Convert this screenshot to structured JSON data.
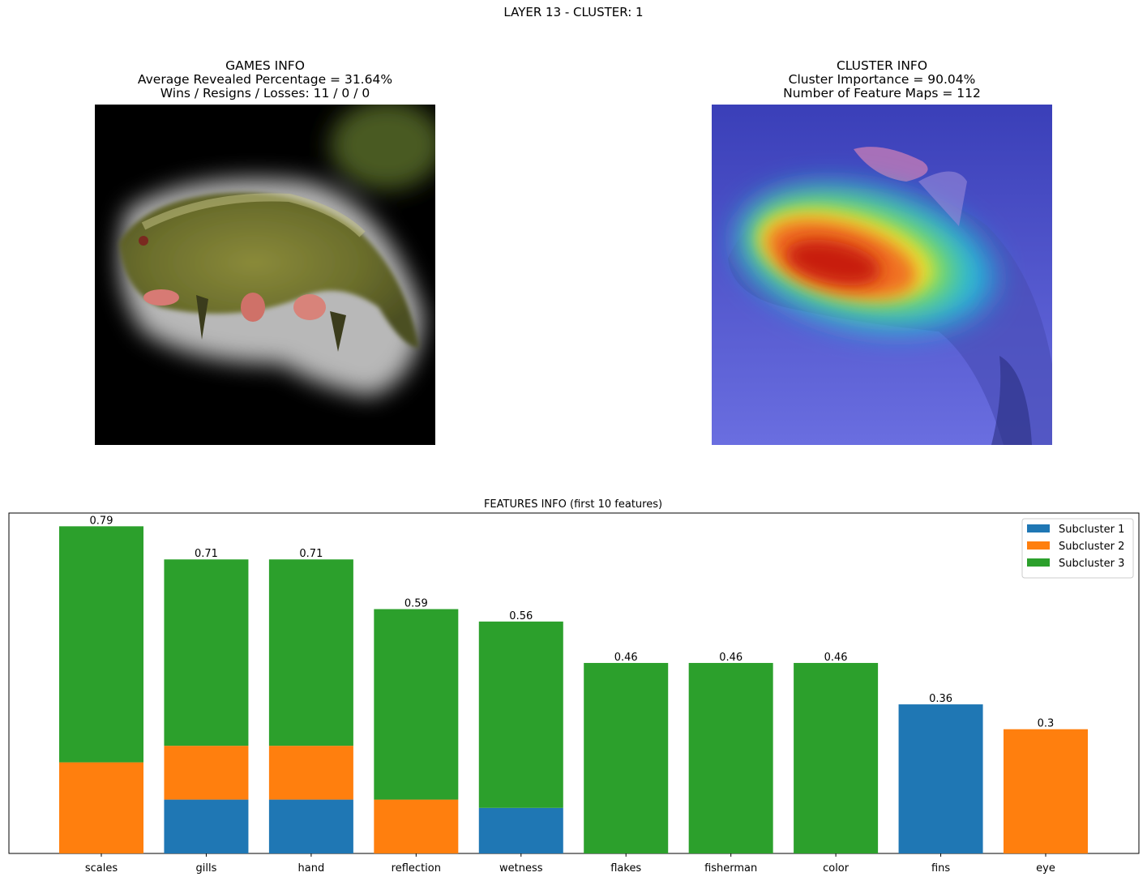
{
  "suptitle": "LAYER 13 - CLUSTER: 1",
  "games_info": {
    "line1": "GAMES INFO",
    "line2": "Average Revealed Percentage = 31.64%",
    "line3": "Wins / Resigns / Losses: 11 / 0 / 0"
  },
  "cluster_info": {
    "line1": "CLUSTER INFO",
    "line2": "Cluster Importance = 90.04%",
    "line3": "Number of Feature Maps = 112"
  },
  "images": {
    "left": "masked-fish-image",
    "right": "fish-heatmap-overlay-image"
  },
  "chart_data": {
    "type": "bar",
    "stacked": true,
    "title": "FEATURES INFO (first 10 features)",
    "xlabel": "",
    "ylabel": "",
    "ylim": [
      0,
      0.79
    ],
    "grid": false,
    "legend_position": "top-right",
    "categories": [
      "scales",
      "gills",
      "hand",
      "reflection",
      "wetness",
      "flakes",
      "fisherman",
      "color",
      "fins",
      "eye"
    ],
    "totals": [
      0.79,
      0.71,
      0.71,
      0.59,
      0.56,
      0.46,
      0.46,
      0.46,
      0.36,
      0.3
    ],
    "total_labels": [
      "0.79",
      "0.71",
      "0.71",
      "0.59",
      "0.56",
      "0.46",
      "0.46",
      "0.46",
      "0.36",
      "0.3"
    ],
    "series": [
      {
        "name": "Subcluster 1",
        "color": "#1f77b4",
        "values": [
          0,
          0.13,
          0.13,
          0,
          0.11,
          0,
          0,
          0,
          0.36,
          0
        ]
      },
      {
        "name": "Subcluster 2",
        "color": "#ff7f0e",
        "values": [
          0.22,
          0.13,
          0.13,
          0.13,
          0,
          0,
          0,
          0,
          0,
          0.3
        ]
      },
      {
        "name": "Subcluster 3",
        "color": "#2ca02c",
        "values": [
          0.57,
          0.45,
          0.45,
          0.46,
          0.45,
          0.46,
          0.46,
          0.46,
          0,
          0
        ]
      }
    ]
  }
}
